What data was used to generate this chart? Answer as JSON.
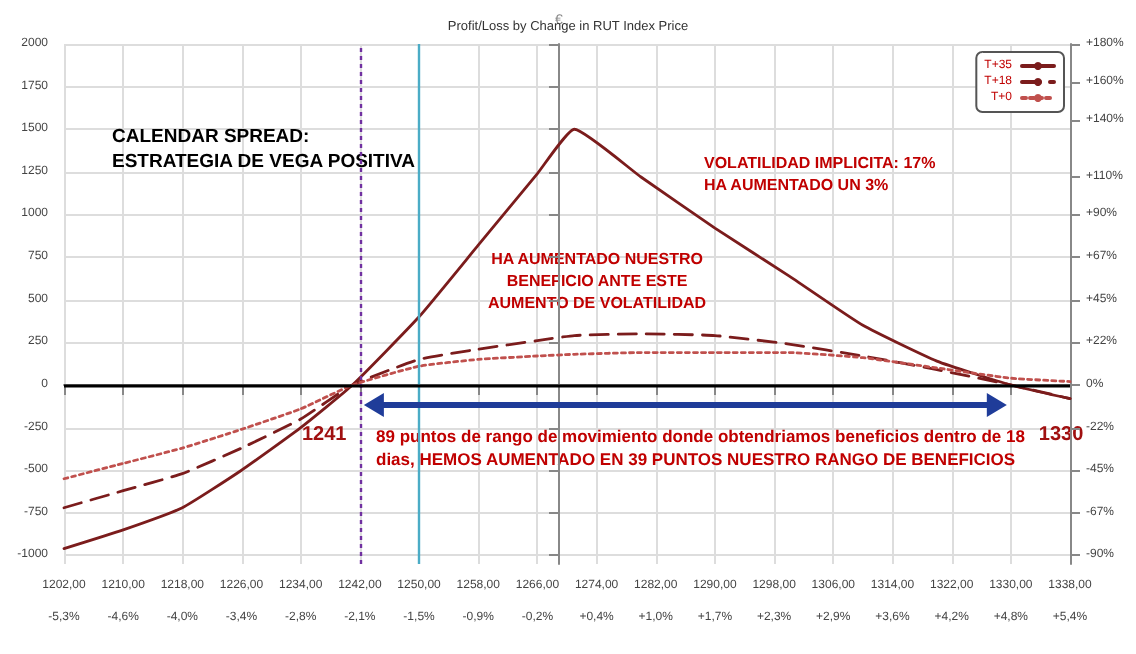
{
  "chart_data": {
    "type": "line",
    "title": "Profit/Loss by Change in RUT Index Price",
    "ylabel": "€",
    "x": [
      1202,
      1210,
      1218,
      1226,
      1234,
      1241,
      1250,
      1258,
      1266,
      1271,
      1280,
      1290,
      1300,
      1310,
      1320,
      1330,
      1338
    ],
    "series": [
      {
        "name": "T+35",
        "color": "#7b1c1c",
        "line_style": "solid",
        "values": [
          -960,
          -850,
          -720,
          -500,
          -250,
          0,
          400,
          820,
          1240,
          1500,
          1220,
          920,
          640,
          350,
          140,
          0,
          -80
        ]
      },
      {
        "name": "T+18",
        "color": "#7b1c1c",
        "line_style": "dashed",
        "values": [
          -720,
          -620,
          -520,
          -370,
          -200,
          0,
          150,
          210,
          260,
          290,
          300,
          290,
          240,
          170,
          90,
          0,
          -80
        ]
      },
      {
        "name": "T+0",
        "color": "#c0504d",
        "line_style": "dotted",
        "values": [
          -550,
          -460,
          -370,
          -260,
          -140,
          0,
          110,
          150,
          170,
          180,
          190,
          190,
          190,
          160,
          100,
          40,
          20
        ]
      }
    ],
    "xlim": [
      1202,
      1338
    ],
    "xticks": [
      {
        "value": 1202,
        "label": "1202,00"
      },
      {
        "value": 1210,
        "label": "1210,00"
      },
      {
        "value": 1218,
        "label": "1218,00"
      },
      {
        "value": 1226,
        "label": "1226,00"
      },
      {
        "value": 1234,
        "label": "1234,00"
      },
      {
        "value": 1242,
        "label": "1242,00"
      },
      {
        "value": 1250,
        "label": "1250,00"
      },
      {
        "value": 1258,
        "label": "1258,00"
      },
      {
        "value": 1266,
        "label": "1266,00"
      },
      {
        "value": 1274,
        "label": "1274,00"
      },
      {
        "value": 1282,
        "label": "1282,00"
      },
      {
        "value": 1290,
        "label": "1290,00"
      },
      {
        "value": 1298,
        "label": "1298,00"
      },
      {
        "value": 1306,
        "label": "1306,00"
      },
      {
        "value": 1314,
        "label": "1314,00"
      },
      {
        "value": 1322,
        "label": "1322,00"
      },
      {
        "value": 1330,
        "label": "1330,00"
      },
      {
        "value": 1338,
        "label": "1338,00"
      }
    ],
    "x2lim": [
      -5.278,
      5.449
    ],
    "x2ticks": [
      {
        "value": -5.278,
        "label": "-5,3%"
      },
      {
        "value": -4.647,
        "label": "-4,6%"
      },
      {
        "value": -4.016,
        "label": "-4,0%"
      },
      {
        "value": -3.385,
        "label": "-3,4%"
      },
      {
        "value": -2.754,
        "label": "-2,8%"
      },
      {
        "value": -2.123,
        "label": "-2,1%"
      },
      {
        "value": -1.492,
        "label": "-1,5%"
      },
      {
        "value": -0.861,
        "label": "-0,9%"
      },
      {
        "value": -0.23,
        "label": "-0,2%"
      },
      {
        "value": 0.401,
        "label": "+0,4%"
      },
      {
        "value": 1.032,
        "label": "+1,0%"
      },
      {
        "value": 1.663,
        "label": "+1,7%"
      },
      {
        "value": 2.294,
        "label": "+2,3%"
      },
      {
        "value": 2.925,
        "label": "+2,9%"
      },
      {
        "value": 3.556,
        "label": "+3,6%"
      },
      {
        "value": 4.187,
        "label": "+4,2%"
      },
      {
        "value": 4.818,
        "label": "+4,8%"
      },
      {
        "value": 5.449,
        "label": "+5,4%"
      }
    ],
    "ylim": [
      -1050,
      2000
    ],
    "yticks": [
      -1000,
      -750,
      -500,
      -250,
      0,
      250,
      500,
      750,
      1000,
      1250,
      1500,
      1750,
      2000
    ],
    "y2lim": [
      -94.5,
      180
    ],
    "y2ticks": [
      {
        "value": -90,
        "label": "-90%"
      },
      {
        "value": -67.5,
        "label": "-67%"
      },
      {
        "value": -45,
        "label": "-45%"
      },
      {
        "value": -22.5,
        "label": "-22%"
      },
      {
        "value": 0,
        "label": "0%"
      },
      {
        "value": 22.5,
        "label": "+22%"
      },
      {
        "value": 45,
        "label": "+45%"
      },
      {
        "value": 67.5,
        "label": "+67%"
      },
      {
        "value": 90,
        "label": "+90%"
      },
      {
        "value": 110,
        "label": "+110%"
      },
      {
        "value": 140,
        "label": "+140%"
      },
      {
        "value": 160,
        "label": "+160%"
      },
      {
        "value": 180,
        "label": "+180%"
      }
    ],
    "ref_lines": [
      {
        "axis": "x",
        "value": 1242,
        "color": "#7030a0",
        "line_style": "dotted"
      },
      {
        "axis": "x",
        "value": 1250,
        "color": "#4bacc6",
        "line_style": "solid"
      },
      {
        "axis": "y",
        "value": 0,
        "color": "#000000",
        "line_style": "solid"
      }
    ],
    "annotations": [
      "CALENDAR SPREAD:\nESTRATEGIA DE VEGA POSITIVA",
      "VOLATILIDAD IMPLICITA: 17%\nHA AUMENTADO UN 3%",
      "HA AUMENTADO NUESTRO\nBENEFICIO ANTE ESTE\nAUMENTO DE VOLATILIDAD",
      "89 puntos de rango de movimiento donde obtendriamos beneficios dentro de 18\ndias, HEMOS AUMENTADO EN 39 PUNTOS NUESTRO RANGO DE BENEFICIOS",
      {
        "text": "1241",
        "x": 1241,
        "y": 0
      },
      {
        "text": "1330",
        "x": 1330,
        "y": 0
      }
    ],
    "grid": true,
    "legend": "top right",
    "marker": "none"
  }
}
